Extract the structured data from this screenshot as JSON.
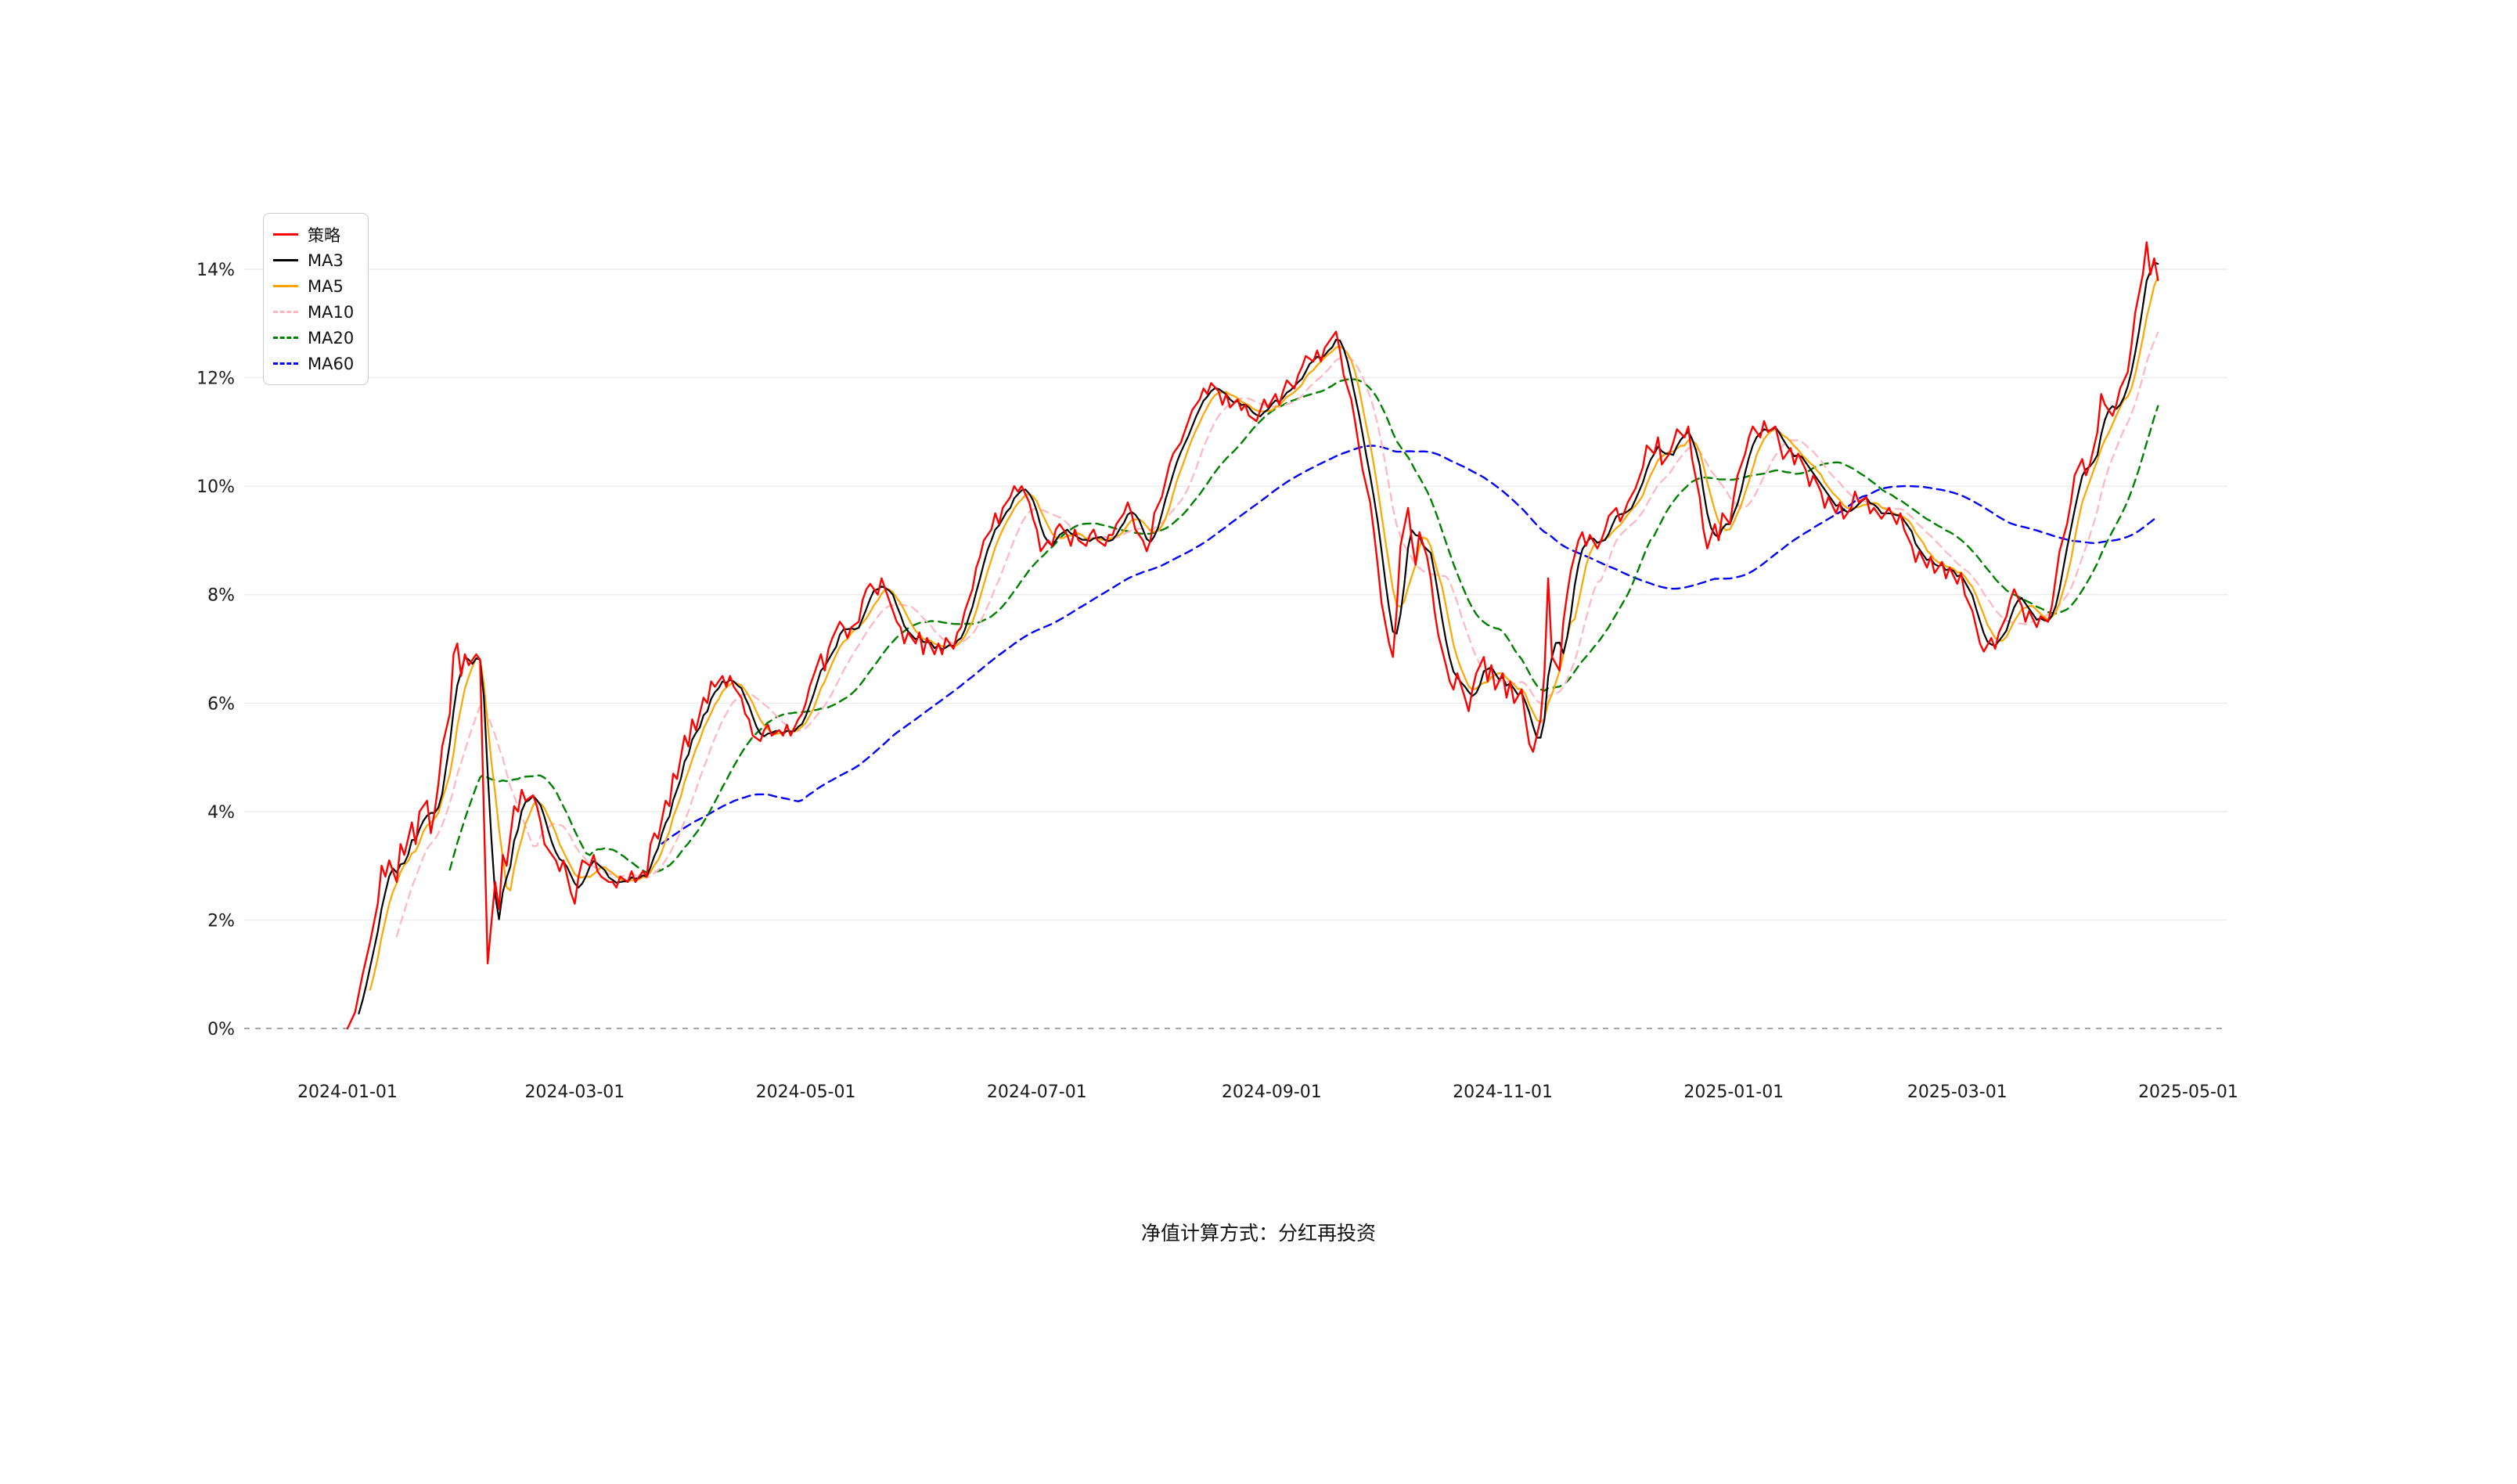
{
  "chart_data": {
    "type": "line",
    "title": "",
    "caption": "净值计算方式：分红再投资",
    "grid": "horizontal",
    "legend_position": "top-left",
    "ylim": [
      0,
      14.8
    ],
    "x_range_days": [
      0,
      486
    ],
    "y_ticks": [
      {
        "value": 0,
        "label": "0%"
      },
      {
        "value": 2,
        "label": "2%"
      },
      {
        "value": 4,
        "label": "4%"
      },
      {
        "value": 6,
        "label": "6%"
      },
      {
        "value": 8,
        "label": "8%"
      },
      {
        "value": 10,
        "label": "10%"
      },
      {
        "value": 12,
        "label": "12%"
      },
      {
        "value": 14,
        "label": "14%"
      }
    ],
    "x_ticks": [
      {
        "day": 0,
        "label": "2024-01-01"
      },
      {
        "day": 60,
        "label": "2024-03-01"
      },
      {
        "day": 121,
        "label": "2024-05-01"
      },
      {
        "day": 182,
        "label": "2024-07-01"
      },
      {
        "day": 244,
        "label": "2024-09-01"
      },
      {
        "day": 305,
        "label": "2024-11-01"
      },
      {
        "day": 366,
        "label": "2025-01-01"
      },
      {
        "day": 425,
        "label": "2025-03-01"
      },
      {
        "day": 486,
        "label": "2025-05-01"
      }
    ],
    "series": [
      {
        "name": "策略",
        "color": "#ff0000",
        "style": "solid",
        "width": 2.4
      },
      {
        "name": "MA3",
        "color": "#000000",
        "style": "solid",
        "width": 2.2,
        "ma_window": 4
      },
      {
        "name": "MA5",
        "color": "#ffa500",
        "style": "solid",
        "width": 2.2,
        "ma_window": 7
      },
      {
        "name": "MA10",
        "color": "#ffb6c1",
        "style": "dashed",
        "width": 2.2,
        "ma_window": 14
      },
      {
        "name": "MA20",
        "color": "#008000",
        "style": "dashed",
        "width": 2.4,
        "ma_window": 28
      },
      {
        "name": "MA60",
        "color": "#0000ff",
        "style": "dashed",
        "width": 2.4,
        "ma_window": 84
      }
    ],
    "strategy_points": [
      [
        0,
        0
      ],
      [
        2,
        0.3
      ],
      [
        4,
        1.0
      ],
      [
        6,
        1.6
      ],
      [
        8,
        2.3
      ],
      [
        9,
        3.0
      ],
      [
        10,
        2.8
      ],
      [
        11,
        3.1
      ],
      [
        13,
        2.7
      ],
      [
        14,
        3.4
      ],
      [
        15,
        3.2
      ],
      [
        17,
        3.8
      ],
      [
        18,
        3.4
      ],
      [
        19,
        4.0
      ],
      [
        21,
        4.2
      ],
      [
        22,
        3.6
      ],
      [
        23,
        4.0
      ],
      [
        24,
        4.5
      ],
      [
        25,
        5.2
      ],
      [
        27,
        5.8
      ],
      [
        28,
        6.9
      ],
      [
        29,
        7.1
      ],
      [
        30,
        6.5
      ],
      [
        31,
        6.9
      ],
      [
        32,
        6.7
      ],
      [
        34,
        6.9
      ],
      [
        35,
        6.8
      ],
      [
        36,
        4.0
      ],
      [
        37,
        1.2
      ],
      [
        39,
        2.7
      ],
      [
        40,
        2.2
      ],
      [
        41,
        3.2
      ],
      [
        42,
        3.0
      ],
      [
        44,
        4.1
      ],
      [
        45,
        4.0
      ],
      [
        46,
        4.4
      ],
      [
        47,
        4.2
      ],
      [
        49,
        4.3
      ],
      [
        50,
        4.1
      ],
      [
        51,
        3.8
      ],
      [
        52,
        3.4
      ],
      [
        54,
        3.2
      ],
      [
        55,
        3.1
      ],
      [
        56,
        2.9
      ],
      [
        57,
        3.1
      ],
      [
        59,
        2.5
      ],
      [
        60,
        2.3
      ],
      [
        61,
        2.8
      ],
      [
        62,
        3.1
      ],
      [
        64,
        3.0
      ],
      [
        65,
        3.2
      ],
      [
        66,
        2.9
      ],
      [
        67,
        2.8
      ],
      [
        69,
        2.7
      ],
      [
        70,
        2.7
      ],
      [
        71,
        2.6
      ],
      [
        72,
        2.8
      ],
      [
        74,
        2.7
      ],
      [
        75,
        2.9
      ],
      [
        76,
        2.7
      ],
      [
        78,
        2.9
      ],
      [
        79,
        2.8
      ],
      [
        80,
        3.4
      ],
      [
        81,
        3.6
      ],
      [
        82,
        3.5
      ],
      [
        84,
        4.2
      ],
      [
        85,
        4.1
      ],
      [
        86,
        4.7
      ],
      [
        87,
        4.6
      ],
      [
        89,
        5.4
      ],
      [
        90,
        5.2
      ],
      [
        91,
        5.7
      ],
      [
        92,
        5.5
      ],
      [
        94,
        6.1
      ],
      [
        95,
        6.0
      ],
      [
        96,
        6.4
      ],
      [
        97,
        6.3
      ],
      [
        99,
        6.5
      ],
      [
        100,
        6.3
      ],
      [
        101,
        6.5
      ],
      [
        102,
        6.3
      ],
      [
        104,
        6.1
      ],
      [
        105,
        5.8
      ],
      [
        106,
        5.7
      ],
      [
        107,
        5.4
      ],
      [
        109,
        5.3
      ],
      [
        110,
        5.5
      ],
      [
        111,
        5.6
      ],
      [
        112,
        5.4
      ],
      [
        114,
        5.5
      ],
      [
        115,
        5.4
      ],
      [
        116,
        5.6
      ],
      [
        117,
        5.4
      ],
      [
        119,
        5.7
      ],
      [
        120,
        5.8
      ],
      [
        121,
        6.0
      ],
      [
        122,
        6.3
      ],
      [
        123,
        6.5
      ],
      [
        125,
        6.9
      ],
      [
        126,
        6.6
      ],
      [
        127,
        7.0
      ],
      [
        128,
        7.2
      ],
      [
        130,
        7.5
      ],
      [
        131,
        7.4
      ],
      [
        132,
        7.2
      ],
      [
        133,
        7.4
      ],
      [
        135,
        7.5
      ],
      [
        136,
        7.9
      ],
      [
        137,
        8.1
      ],
      [
        138,
        8.2
      ],
      [
        140,
        8.0
      ],
      [
        141,
        8.3
      ],
      [
        142,
        8.1
      ],
      [
        143,
        7.9
      ],
      [
        145,
        7.5
      ],
      [
        146,
        7.4
      ],
      [
        147,
        7.1
      ],
      [
        148,
        7.3
      ],
      [
        150,
        7.1
      ],
      [
        151,
        7.3
      ],
      [
        152,
        6.9
      ],
      [
        153,
        7.2
      ],
      [
        155,
        6.9
      ],
      [
        156,
        7.1
      ],
      [
        157,
        6.9
      ],
      [
        158,
        7.2
      ],
      [
        160,
        7.0
      ],
      [
        161,
        7.3
      ],
      [
        162,
        7.4
      ],
      [
        163,
        7.7
      ],
      [
        165,
        8.1
      ],
      [
        166,
        8.5
      ],
      [
        167,
        8.7
      ],
      [
        168,
        9.0
      ],
      [
        170,
        9.2
      ],
      [
        171,
        9.5
      ],
      [
        172,
        9.3
      ],
      [
        173,
        9.6
      ],
      [
        175,
        9.8
      ],
      [
        176,
        10.0
      ],
      [
        177,
        9.9
      ],
      [
        178,
        10.0
      ],
      [
        180,
        9.7
      ],
      [
        181,
        9.4
      ],
      [
        182,
        9.2
      ],
      [
        183,
        8.8
      ],
      [
        185,
        9.0
      ],
      [
        186,
        8.9
      ],
      [
        187,
        9.2
      ],
      [
        188,
        9.3
      ],
      [
        190,
        9.1
      ],
      [
        191,
        8.9
      ],
      [
        192,
        9.2
      ],
      [
        193,
        9.0
      ],
      [
        195,
        8.9
      ],
      [
        196,
        9.1
      ],
      [
        197,
        9.2
      ],
      [
        198,
        9.0
      ],
      [
        200,
        8.9
      ],
      [
        201,
        9.1
      ],
      [
        202,
        9.1
      ],
      [
        203,
        9.3
      ],
      [
        205,
        9.5
      ],
      [
        206,
        9.7
      ],
      [
        207,
        9.5
      ],
      [
        208,
        9.2
      ],
      [
        210,
        9.0
      ],
      [
        211,
        8.8
      ],
      [
        212,
        9.0
      ],
      [
        213,
        9.5
      ],
      [
        215,
        9.8
      ],
      [
        216,
        10.1
      ],
      [
        217,
        10.4
      ],
      [
        218,
        10.6
      ],
      [
        220,
        10.8
      ],
      [
        221,
        11.0
      ],
      [
        222,
        11.2
      ],
      [
        223,
        11.4
      ],
      [
        225,
        11.6
      ],
      [
        226,
        11.8
      ],
      [
        227,
        11.7
      ],
      [
        228,
        11.9
      ],
      [
        230,
        11.75
      ],
      [
        231,
        11.5
      ],
      [
        232,
        11.7
      ],
      [
        233,
        11.45
      ],
      [
        235,
        11.6
      ],
      [
        236,
        11.4
      ],
      [
        237,
        11.5
      ],
      [
        238,
        11.3
      ],
      [
        240,
        11.2
      ],
      [
        241,
        11.4
      ],
      [
        242,
        11.6
      ],
      [
        243,
        11.45
      ],
      [
        245,
        11.7
      ],
      [
        246,
        11.5
      ],
      [
        247,
        11.75
      ],
      [
        248,
        11.95
      ],
      [
        250,
        11.8
      ],
      [
        251,
        12.05
      ],
      [
        252,
        12.2
      ],
      [
        253,
        12.4
      ],
      [
        255,
        12.3
      ],
      [
        256,
        12.5
      ],
      [
        257,
        12.3
      ],
      [
        258,
        12.55
      ],
      [
        260,
        12.75
      ],
      [
        261,
        12.85
      ],
      [
        262,
        12.5
      ],
      [
        263,
        12.05
      ],
      [
        265,
        11.6
      ],
      [
        266,
        11.2
      ],
      [
        267,
        10.75
      ],
      [
        268,
        10.3
      ],
      [
        270,
        9.7
      ],
      [
        271,
        9.15
      ],
      [
        272,
        8.55
      ],
      [
        273,
        7.85
      ],
      [
        275,
        7.1
      ],
      [
        276,
        6.85
      ],
      [
        277,
        7.7
      ],
      [
        278,
        8.9
      ],
      [
        280,
        9.6
      ],
      [
        281,
        9.0
      ],
      [
        282,
        8.55
      ],
      [
        283,
        9.15
      ],
      [
        285,
        8.7
      ],
      [
        286,
        8.3
      ],
      [
        287,
        7.7
      ],
      [
        288,
        7.25
      ],
      [
        290,
        6.7
      ],
      [
        291,
        6.4
      ],
      [
        292,
        6.25
      ],
      [
        293,
        6.55
      ],
      [
        295,
        6.1
      ],
      [
        296,
        5.85
      ],
      [
        297,
        6.25
      ],
      [
        298,
        6.55
      ],
      [
        300,
        6.85
      ],
      [
        301,
        6.4
      ],
      [
        302,
        6.7
      ],
      [
        303,
        6.25
      ],
      [
        305,
        6.55
      ],
      [
        306,
        6.1
      ],
      [
        307,
        6.4
      ],
      [
        308,
        6.0
      ],
      [
        310,
        6.25
      ],
      [
        311,
        5.7
      ],
      [
        312,
        5.25
      ],
      [
        313,
        5.1
      ],
      [
        315,
        5.7
      ],
      [
        316,
        6.55
      ],
      [
        317,
        8.3
      ],
      [
        318,
        6.85
      ],
      [
        320,
        6.6
      ],
      [
        321,
        7.5
      ],
      [
        322,
        8.0
      ],
      [
        323,
        8.45
      ],
      [
        325,
        9.0
      ],
      [
        326,
        9.15
      ],
      [
        327,
        8.9
      ],
      [
        328,
        9.1
      ],
      [
        330,
        8.85
      ],
      [
        331,
        9.0
      ],
      [
        332,
        9.2
      ],
      [
        333,
        9.45
      ],
      [
        335,
        9.6
      ],
      [
        336,
        9.35
      ],
      [
        337,
        9.5
      ],
      [
        338,
        9.7
      ],
      [
        340,
        9.95
      ],
      [
        341,
        10.15
      ],
      [
        342,
        10.35
      ],
      [
        343,
        10.75
      ],
      [
        345,
        10.6
      ],
      [
        346,
        10.9
      ],
      [
        347,
        10.4
      ],
      [
        349,
        10.6
      ],
      [
        350,
        10.8
      ],
      [
        351,
        11.05
      ],
      [
        353,
        10.9
      ],
      [
        354,
        11.1
      ],
      [
        355,
        10.5
      ],
      [
        357,
        9.8
      ],
      [
        358,
        9.2
      ],
      [
        359,
        8.85
      ],
      [
        361,
        9.3
      ],
      [
        362,
        9.0
      ],
      [
        363,
        9.5
      ],
      [
        365,
        9.3
      ],
      [
        366,
        9.8
      ],
      [
        367,
        10.2
      ],
      [
        369,
        10.6
      ],
      [
        370,
        10.9
      ],
      [
        371,
        11.1
      ],
      [
        373,
        10.9
      ],
      [
        374,
        11.2
      ],
      [
        375,
        11.0
      ],
      [
        377,
        11.1
      ],
      [
        378,
        10.8
      ],
      [
        379,
        10.5
      ],
      [
        381,
        10.7
      ],
      [
        382,
        10.4
      ],
      [
        383,
        10.6
      ],
      [
        385,
        10.3
      ],
      [
        386,
        10.0
      ],
      [
        387,
        10.2
      ],
      [
        389,
        9.9
      ],
      [
        390,
        9.6
      ],
      [
        391,
        9.8
      ],
      [
        393,
        9.5
      ],
      [
        394,
        9.7
      ],
      [
        395,
        9.4
      ],
      [
        397,
        9.6
      ],
      [
        398,
        9.9
      ],
      [
        399,
        9.7
      ],
      [
        401,
        9.8
      ],
      [
        402,
        9.5
      ],
      [
        403,
        9.6
      ],
      [
        405,
        9.4
      ],
      [
        406,
        9.5
      ],
      [
        407,
        9.6
      ],
      [
        409,
        9.3
      ],
      [
        410,
        9.5
      ],
      [
        411,
        9.2
      ],
      [
        413,
        8.9
      ],
      [
        414,
        8.6
      ],
      [
        415,
        8.8
      ],
      [
        417,
        8.5
      ],
      [
        418,
        8.7
      ],
      [
        419,
        8.4
      ],
      [
        421,
        8.6
      ],
      [
        422,
        8.3
      ],
      [
        423,
        8.5
      ],
      [
        425,
        8.2
      ],
      [
        426,
        8.4
      ],
      [
        427,
        8.0
      ],
      [
        429,
        7.7
      ],
      [
        430,
        7.4
      ],
      [
        431,
        7.1
      ],
      [
        432,
        6.95
      ],
      [
        434,
        7.2
      ],
      [
        435,
        7.0
      ],
      [
        436,
        7.3
      ],
      [
        438,
        7.6
      ],
      [
        439,
        7.9
      ],
      [
        440,
        8.1
      ],
      [
        442,
        7.8
      ],
      [
        443,
        7.5
      ],
      [
        444,
        7.7
      ],
      [
        446,
        7.4
      ],
      [
        447,
        7.6
      ],
      [
        449,
        7.5
      ],
      [
        450,
        7.8
      ],
      [
        451,
        8.3
      ],
      [
        452,
        8.8
      ],
      [
        454,
        9.3
      ],
      [
        455,
        9.7
      ],
      [
        456,
        10.2
      ],
      [
        458,
        10.5
      ],
      [
        459,
        10.2
      ],
      [
        460,
        10.4
      ],
      [
        462,
        11.0
      ],
      [
        463,
        11.7
      ],
      [
        464,
        11.5
      ],
      [
        466,
        11.3
      ],
      [
        467,
        11.5
      ],
      [
        468,
        11.8
      ],
      [
        470,
        12.1
      ],
      [
        471,
        12.6
      ],
      [
        472,
        13.2
      ],
      [
        474,
        13.9
      ],
      [
        475,
        14.5
      ],
      [
        476,
        13.9
      ],
      [
        477,
        14.2
      ],
      [
        478,
        13.8
      ]
    ]
  }
}
